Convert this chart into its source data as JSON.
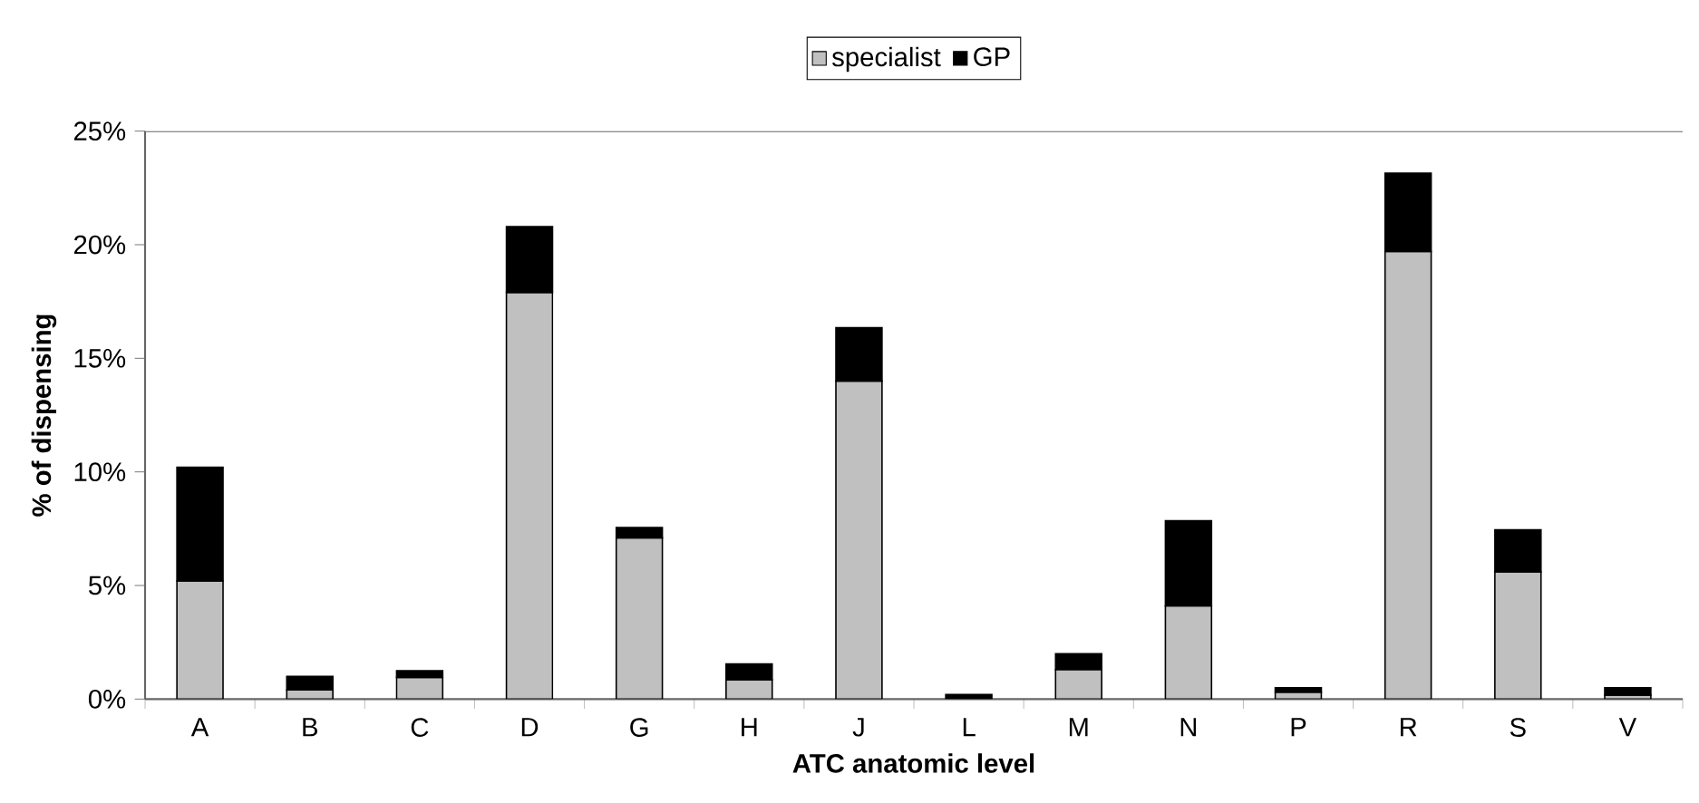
{
  "chart_data": {
    "type": "bar",
    "stacked": true,
    "xlabel": "ATC anatomic level",
    "ylabel": "% of dispensing",
    "categories": [
      "A",
      "B",
      "C",
      "D",
      "G",
      "H",
      "J",
      "L",
      "M",
      "N",
      "P",
      "R",
      "S",
      "V"
    ],
    "series": [
      {
        "name": "specialist",
        "color": "#c0c0c0",
        "values": [
          5.2,
          0.4,
          0.95,
          17.9,
          7.1,
          0.85,
          14.0,
          null,
          1.3,
          4.1,
          0.3,
          19.7,
          5.6,
          0.17
        ]
      },
      {
        "name": "GP",
        "color": "#000000",
        "values": [
          5.0,
          0.6,
          0.3,
          2.9,
          0.45,
          0.7,
          2.35,
          0.2,
          0.7,
          3.75,
          0.2,
          3.45,
          1.85,
          0.33
        ]
      }
    ],
    "ylim": [
      0,
      25
    ],
    "yticks": [
      {
        "value": 0,
        "label": "0%"
      },
      {
        "value": 5,
        "label": "5%"
      },
      {
        "value": 10,
        "label": "10%"
      },
      {
        "value": 15,
        "label": "15%"
      },
      {
        "value": 20,
        "label": "20%"
      },
      {
        "value": 25,
        "label": "25%"
      }
    ],
    "grid": false,
    "legend": "top"
  }
}
